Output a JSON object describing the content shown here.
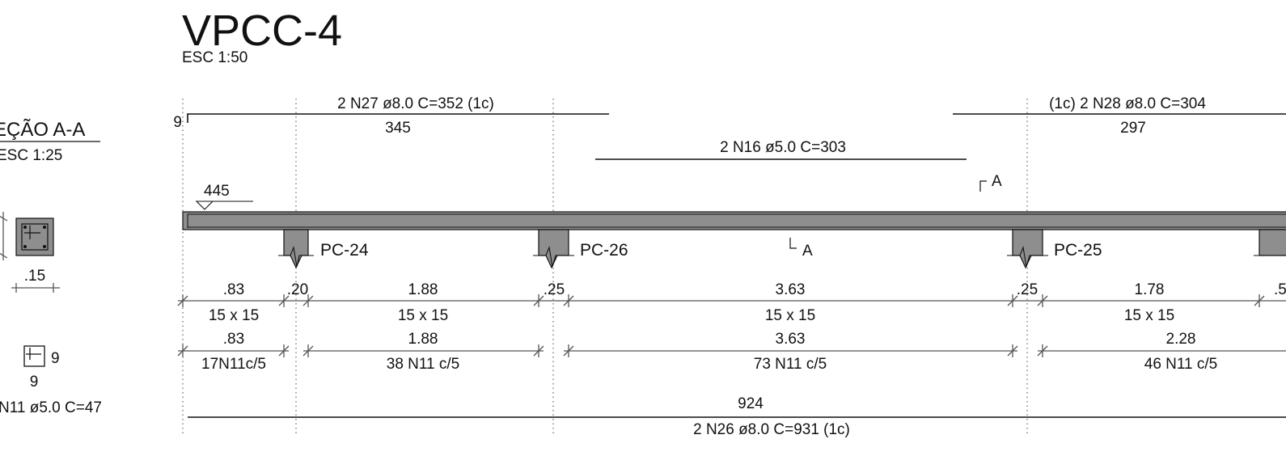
{
  "title": "VPCC-4",
  "scale": "ESC 1:50",
  "section": {
    "title": "EÇÃO A-A",
    "scale": "ESC 1:25",
    "width_label": ".15",
    "stirrup_dim_right": "9",
    "stirrup_dim_bottom": "9",
    "stirrup_label": "N11 ø5.0 C=47"
  },
  "level": {
    "value": "445"
  },
  "section_cut": {
    "top": "A",
    "bottom": "A"
  },
  "top_bars": {
    "left": {
      "label": "2 N27 ø8.0 C=352 (1c)",
      "length": "345",
      "hook": "9"
    },
    "middle": {
      "label": "2 N16 ø5.0 C=303"
    },
    "right": {
      "label": "(1c) 2 N28 ø8.0 C=304",
      "length": "297"
    }
  },
  "pillars": [
    "PC-24",
    "PC-26",
    "PC-25"
  ],
  "dims_row1": [
    ".83",
    ".20",
    "1.88",
    ".25",
    "3.63",
    ".25",
    "1.78",
    ".5"
  ],
  "sections_row": [
    "15 x 15",
    "15 x 15",
    "15 x 15",
    "15 x 15"
  ],
  "dims_row2": [
    ".83",
    "1.88",
    "3.63",
    "2.28"
  ],
  "stirrups_row": [
    "17N11c/5",
    "38 N11 c/5",
    "73 N11 c/5",
    "46 N11 c/5"
  ],
  "bottom_bar": {
    "length": "924",
    "label": "2 N26 ø8.0 C=931 (1c)"
  }
}
